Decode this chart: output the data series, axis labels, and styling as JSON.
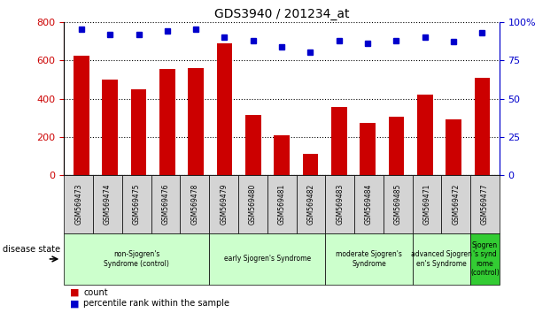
{
  "title": "GDS3940 / 201234_at",
  "samples": [
    "GSM569473",
    "GSM569474",
    "GSM569475",
    "GSM569476",
    "GSM569478",
    "GSM569479",
    "GSM569480",
    "GSM569481",
    "GSM569482",
    "GSM569483",
    "GSM569484",
    "GSM569485",
    "GSM569471",
    "GSM569472",
    "GSM569477"
  ],
  "counts": [
    625,
    500,
    450,
    555,
    560,
    690,
    315,
    210,
    110,
    355,
    275,
    305,
    420,
    290,
    510
  ],
  "percentile_ranks": [
    95,
    92,
    92,
    94,
    95,
    90,
    88,
    84,
    80,
    88,
    86,
    88,
    90,
    87,
    93
  ],
  "bar_color": "#cc0000",
  "dot_color": "#0000cc",
  "ylim_left": [
    0,
    800
  ],
  "ylim_right": [
    0,
    100
  ],
  "yticks_left": [
    0,
    200,
    400,
    600,
    800
  ],
  "yticks_right": [
    0,
    25,
    50,
    75,
    100
  ],
  "groups": [
    {
      "label": "non-Sjogren's\nSyndrome (control)",
      "start": 0,
      "end": 5,
      "color": "#ccffcc"
    },
    {
      "label": "early Sjogren's Syndrome",
      "start": 5,
      "end": 9,
      "color": "#ccffcc"
    },
    {
      "label": "moderate Sjogren's\nSyndrome",
      "start": 9,
      "end": 12,
      "color": "#ccffcc"
    },
    {
      "label": "advanced Sjogren's\nen's Syndrome",
      "start": 12,
      "end": 14,
      "color": "#ccffcc"
    },
    {
      "label": "Sjogren\n's synd\nrome\n(control)",
      "start": 14,
      "end": 15,
      "color": "#33cc33"
    }
  ],
  "disease_state_label": "disease state",
  "legend_count_label": "count",
  "legend_pct_label": "percentile rank within the sample",
  "left_axis_color": "#cc0000",
  "right_axis_color": "#0000cc",
  "tick_bg_color": "#d4d4d4",
  "plot_bg_color": "#ffffff"
}
